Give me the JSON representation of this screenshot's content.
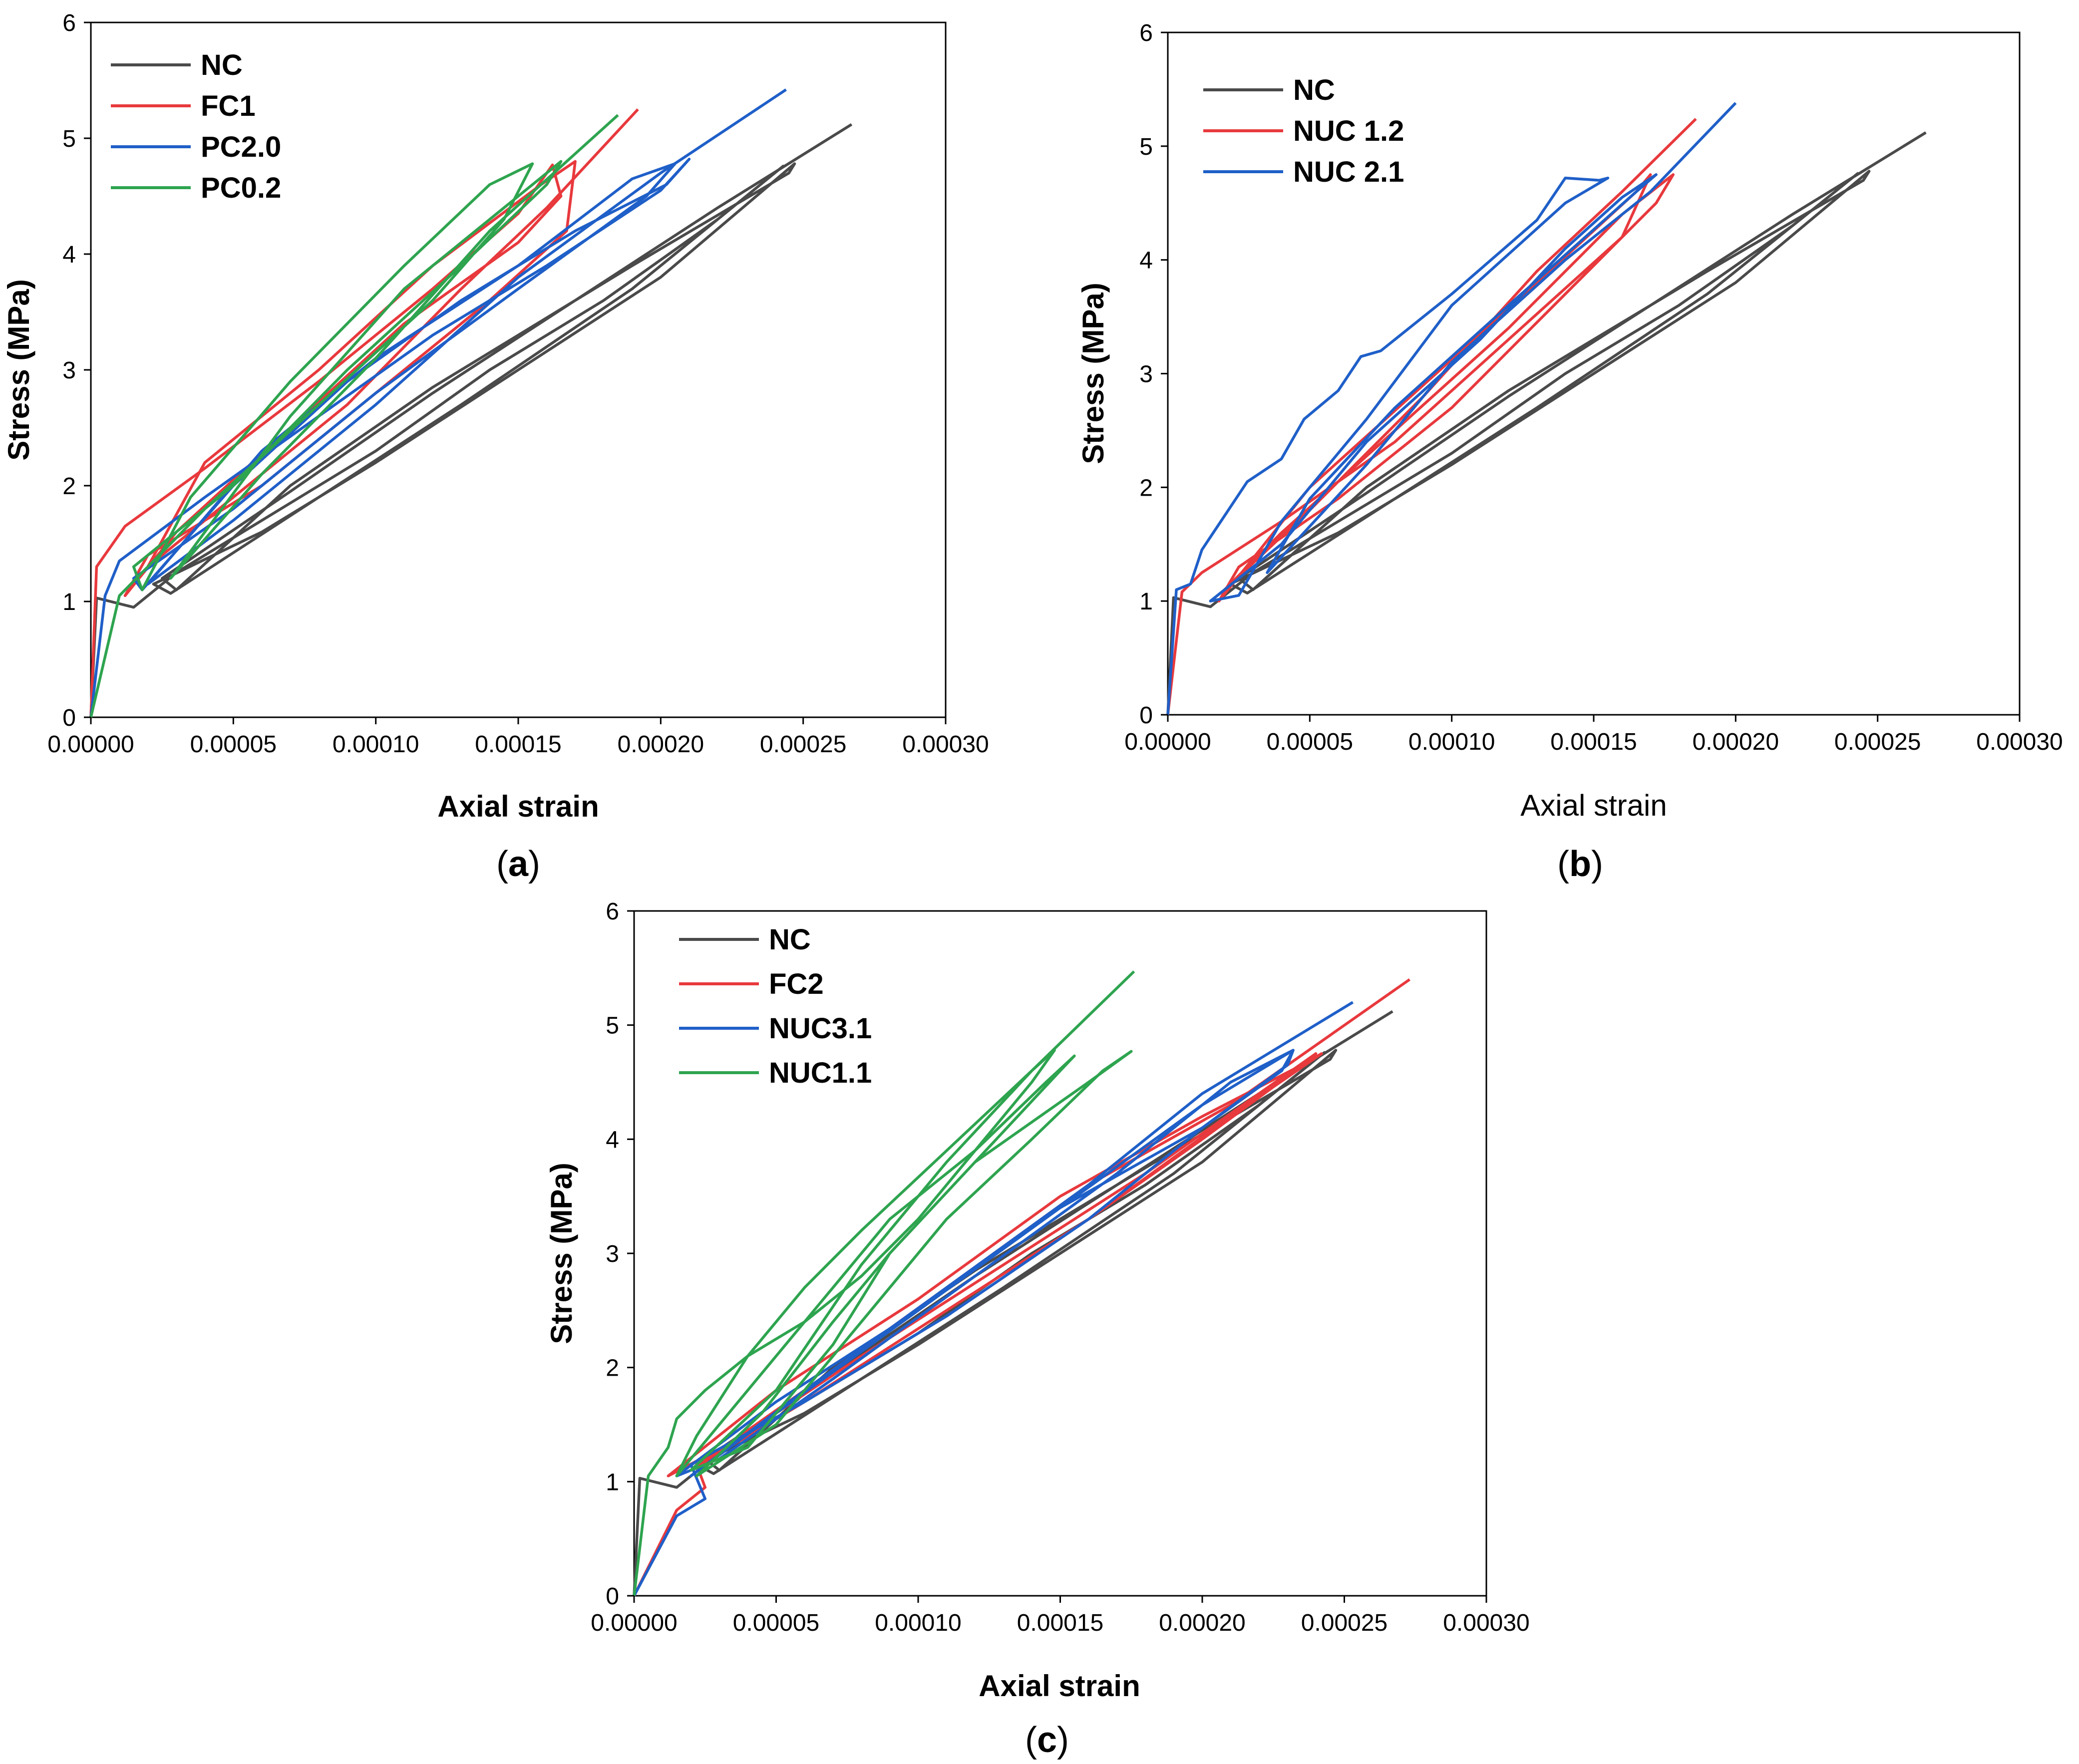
{
  "colors": {
    "NC": "#4a4a4a",
    "red": "#e8393d",
    "blue": "#1f5fc8",
    "green": "#2ea44f"
  },
  "chart_data": [
    {
      "id": "a",
      "type": "line",
      "caption_letter": "a",
      "xlabel": "Axial strain",
      "ylabel": "Stress (MPa)",
      "xlim": [
        0,
        0.0003
      ],
      "ylim": [
        0,
        6
      ],
      "xticks": [
        "0.00000",
        "0.00005",
        "0.00010",
        "0.00015",
        "0.00020",
        "0.00025",
        "0.00030"
      ],
      "yticks": [
        "0",
        "1",
        "2",
        "3",
        "4",
        "5",
        "6"
      ],
      "series": [
        {
          "name": "NC",
          "color": "#4a4a4a",
          "x": [
            0,
            2e-06,
            1.5e-05,
            3e-05,
            6e-05,
            0.0001,
            0.00014,
            0.00018,
            0.00022,
            0.000243,
            0.000235,
            0.00019,
            0.00013,
            8e-05,
            2.8e-05,
            2.2e-05,
            6e-05,
            0.0001,
            0.00015,
            0.0002,
            0.000247,
            0.000245,
            0.00019,
            0.00012,
            7e-05,
            3e-05,
            2.5e-05,
            7e-05,
            0.00012,
            0.00017,
            0.00022,
            0.000267
          ],
          "y": [
            0,
            1.03,
            0.95,
            1.25,
            1.7,
            2.3,
            3.0,
            3.6,
            4.3,
            4.76,
            4.6,
            3.7,
            2.7,
            1.9,
            1.07,
            1.15,
            1.6,
            2.2,
            3.0,
            3.8,
            4.78,
            4.7,
            3.9,
            2.85,
            2.0,
            1.1,
            1.2,
            1.95,
            2.8,
            3.6,
            4.4,
            5.12
          ]
        },
        {
          "name": "FC1",
          "color": "#e8393d",
          "x": [
            0,
            2e-06,
            1.2e-05,
            4e-05,
            8e-05,
            0.00012,
            0.00015,
            0.000162,
            0.000165,
            0.00015,
            0.00011,
            7e-05,
            3e-05,
            1.2e-05,
            2e-05,
            6e-05,
            0.0001,
            0.00014,
            0.000167,
            0.00017,
            0.000158,
            0.00012,
            8e-05,
            4e-05,
            2e-05,
            5e-05,
            9e-05,
            0.00013,
            0.00016,
            0.000192
          ],
          "y": [
            0,
            1.3,
            1.65,
            2.15,
            2.9,
            3.7,
            4.35,
            4.77,
            4.5,
            4.1,
            3.4,
            2.5,
            1.6,
            1.05,
            1.4,
            2.0,
            2.8,
            3.6,
            4.2,
            4.8,
            4.6,
            3.9,
            3.0,
            2.2,
            1.3,
            1.9,
            2.7,
            3.7,
            4.4,
            5.25
          ]
        },
        {
          "name": "PC2.0",
          "color": "#1f5fc8",
          "x": [
            0,
            5e-06,
            1e-05,
            4e-05,
            8e-05,
            0.00012,
            0.00016,
            0.0002,
            0.00021,
            0.000202,
            0.00017,
            0.00013,
            9e-05,
            5e-05,
            1.8e-05,
            1.5e-05,
            5e-05,
            0.0001,
            0.00015,
            0.000195,
            0.000205,
            0.00019,
            0.00015,
            0.0001,
            6e-05,
            2e-05,
            5e-05,
            0.0001,
            0.00015,
            0.0002,
            0.000244
          ],
          "y": [
            0,
            1.05,
            1.35,
            1.9,
            2.6,
            3.3,
            3.9,
            4.55,
            4.82,
            4.6,
            4.2,
            3.6,
            2.9,
            2.0,
            1.1,
            1.2,
            1.8,
            2.8,
            3.7,
            4.5,
            4.78,
            4.65,
            3.9,
            3.1,
            2.3,
            1.15,
            1.7,
            2.7,
            3.8,
            4.7,
            5.42
          ]
        },
        {
          "name": "PC0.2",
          "color": "#2ea44f",
          "x": [
            0,
            1e-05,
            4e-05,
            8e-05,
            0.00012,
            0.000145,
            0.000155,
            0.00014,
            0.00011,
            7e-05,
            3.5e-05,
            1.8e-05,
            1.5e-05,
            5e-05,
            9e-05,
            0.00013,
            0.00016,
            0.000165,
            0.00015,
            0.00011,
            7e-05,
            2.8e-05,
            6e-05,
            0.0001,
            0.00014,
            0.000185
          ],
          "y": [
            0,
            1.05,
            1.8,
            2.7,
            3.6,
            4.3,
            4.78,
            4.6,
            3.9,
            2.9,
            1.9,
            1.1,
            1.3,
            2.0,
            3.0,
            3.9,
            4.6,
            4.8,
            4.5,
            3.7,
            2.6,
            1.2,
            2.1,
            3.1,
            4.2,
            5.2
          ]
        }
      ]
    },
    {
      "id": "b",
      "type": "line",
      "caption_letter": "b",
      "xlabel": "Axial strain",
      "ylabel": "Stress (MPa)",
      "xlim": [
        0,
        0.0003
      ],
      "ylim": [
        0,
        6
      ],
      "xticks": [
        "0.00000",
        "0.00005",
        "0.00010",
        "0.00015",
        "0.00020",
        "0.00025",
        "0.00030"
      ],
      "yticks": [
        "0",
        "1",
        "2",
        "3",
        "4",
        "5",
        "6"
      ],
      "series": [
        {
          "name": "NC",
          "color": "#4a4a4a",
          "x": [
            0,
            2e-06,
            1.5e-05,
            3e-05,
            6e-05,
            0.0001,
            0.00014,
            0.00018,
            0.00022,
            0.000243,
            0.000235,
            0.00019,
            0.00013,
            8e-05,
            2.8e-05,
            2.2e-05,
            6e-05,
            0.0001,
            0.00015,
            0.0002,
            0.000247,
            0.000245,
            0.00019,
            0.00012,
            7e-05,
            3e-05,
            2.5e-05,
            7e-05,
            0.00012,
            0.00017,
            0.00022,
            0.000267
          ],
          "y": [
            0,
            1.03,
            0.95,
            1.25,
            1.7,
            2.3,
            3.0,
            3.6,
            4.3,
            4.76,
            4.6,
            3.7,
            2.7,
            1.9,
            1.07,
            1.15,
            1.6,
            2.2,
            3.0,
            3.8,
            4.78,
            4.7,
            3.9,
            2.85,
            2.0,
            1.1,
            1.2,
            1.95,
            2.8,
            3.6,
            4.4,
            5.12
          ]
        },
        {
          "name": "NUC 1.2",
          "color": "#e8393d",
          "x": [
            0,
            5e-06,
            1.2e-05,
            4e-05,
            8e-05,
            0.00012,
            0.00016,
            0.00017,
            0.000165,
            0.00013,
            9e-05,
            5e-05,
            1.8e-05,
            2.5e-05,
            6e-05,
            0.0001,
            0.00014,
            0.000172,
            0.000178,
            0.00016,
            0.00012,
            8e-05,
            4e-05,
            2e-05,
            5e-05,
            9e-05,
            0.00013,
            0.00016,
            0.000186
          ],
          "y": [
            0,
            1.08,
            1.25,
            1.7,
            2.4,
            3.3,
            4.2,
            4.75,
            4.6,
            3.8,
            2.9,
            2.0,
            1.0,
            1.3,
            1.9,
            2.7,
            3.7,
            4.5,
            4.75,
            4.4,
            3.4,
            2.5,
            1.6,
            1.1,
            1.8,
            2.8,
            3.9,
            4.6,
            5.24
          ]
        },
        {
          "name": "NUC 2.1",
          "color": "#1f5fc8",
          "x": [
            0,
            3e-06,
            8e-06,
            1.2e-05,
            2e-05,
            2.8e-05,
            4e-05,
            4.8e-05,
            6e-05,
            6.8e-05,
            7.5e-05,
            0.0001,
            0.00013,
            0.00014,
            0.000152,
            0.000155,
            0.00014,
            0.0001,
            7e-05,
            4e-05,
            2.5e-05,
            1.5e-05,
            4e-05,
            7e-05,
            0.00011,
            0.00014,
            0.00016,
            0.000172,
            0.000165,
            0.00012,
            8e-05,
            5e-05,
            3.5e-05,
            7e-05,
            0.0001,
            0.00014,
            0.00017,
            0.0002
          ],
          "y": [
            0,
            1.1,
            1.15,
            1.45,
            1.75,
            2.05,
            2.25,
            2.6,
            2.85,
            3.15,
            3.2,
            3.7,
            4.35,
            4.72,
            4.7,
            4.72,
            4.5,
            3.6,
            2.6,
            1.7,
            1.05,
            1.0,
            1.5,
            2.4,
            3.3,
            4.1,
            4.55,
            4.75,
            4.6,
            3.6,
            2.7,
            1.9,
            1.25,
            2.2,
            3.1,
            4.0,
            4.6,
            5.38
          ]
        }
      ]
    },
    {
      "id": "c",
      "type": "line",
      "caption_letter": "c",
      "xlabel": "Axial strain",
      "ylabel": "Stress (MPa)",
      "xlim": [
        0,
        0.0003
      ],
      "ylim": [
        0,
        6
      ],
      "xticks": [
        "0.00000",
        "0.00005",
        "0.00010",
        "0.00015",
        "0.00020",
        "0.00025",
        "0.00030"
      ],
      "yticks": [
        "0",
        "1",
        "2",
        "3",
        "4",
        "5",
        "6"
      ],
      "series": [
        {
          "name": "NC",
          "color": "#4a4a4a",
          "x": [
            0,
            2e-06,
            1.5e-05,
            3e-05,
            6e-05,
            0.0001,
            0.00014,
            0.00018,
            0.00022,
            0.000243,
            0.000235,
            0.00019,
            0.00013,
            8e-05,
            2.8e-05,
            2.2e-05,
            6e-05,
            0.0001,
            0.00015,
            0.0002,
            0.000247,
            0.000245,
            0.00019,
            0.00012,
            7e-05,
            3e-05,
            2.5e-05,
            7e-05,
            0.00012,
            0.00017,
            0.00022,
            0.000267
          ],
          "y": [
            0,
            1.03,
            0.95,
            1.25,
            1.7,
            2.3,
            3.0,
            3.6,
            4.3,
            4.76,
            4.6,
            3.7,
            2.7,
            1.9,
            1.07,
            1.15,
            1.6,
            2.2,
            3.0,
            3.8,
            4.78,
            4.7,
            3.9,
            2.85,
            2.0,
            1.1,
            1.2,
            1.95,
            2.8,
            3.6,
            4.4,
            5.12
          ]
        },
        {
          "name": "FC2",
          "color": "#e8393d",
          "x": [
            0,
            1.5e-05,
            2.5e-05,
            2.2e-05,
            6e-05,
            0.00011,
            0.00016,
            0.0002,
            0.00023,
            0.00024,
            0.00022,
            0.00018,
            0.00013,
            8e-05,
            3.5e-05,
            1.2e-05,
            5e-05,
            0.0001,
            0.00015,
            0.0002,
            0.000235,
            0.000242,
            0.00021,
            0.00016,
            0.00011,
            6e-05,
            2e-05,
            6e-05,
            0.00011,
            0.00016,
            0.00021,
            0.000273
          ],
          "y": [
            0,
            0.75,
            0.95,
            1.15,
            1.7,
            2.5,
            3.3,
            4.0,
            4.55,
            4.75,
            4.4,
            3.7,
            2.9,
            2.1,
            1.35,
            1.05,
            1.8,
            2.6,
            3.5,
            4.2,
            4.65,
            4.75,
            4.2,
            3.3,
            2.5,
            1.7,
            1.1,
            1.8,
            2.7,
            3.6,
            4.3,
            5.4
          ]
        },
        {
          "name": "NUC3.1",
          "color": "#1f5fc8",
          "x": [
            0,
            1.5e-05,
            2.5e-05,
            2e-05,
            6e-05,
            0.00011,
            0.00016,
            0.0002,
            0.00023,
            0.000232,
            0.00021,
            0.00017,
            0.00012,
            7e-05,
            3e-05,
            1.5e-05,
            5e-05,
            0.0001,
            0.00015,
            0.0002,
            0.000228,
            0.000232,
            0.0002,
            0.00015,
            0.0001,
            5e-05,
            2e-05,
            6e-05,
            0.00011,
            0.00016,
            0.0002,
            0.000253
          ],
          "y": [
            0,
            0.7,
            0.85,
            1.15,
            1.7,
            2.45,
            3.3,
            4.1,
            4.65,
            4.78,
            4.5,
            3.7,
            2.8,
            1.9,
            1.2,
            1.05,
            1.7,
            2.5,
            3.4,
            4.1,
            4.6,
            4.78,
            4.3,
            3.4,
            2.5,
            1.6,
            1.05,
            1.8,
            2.7,
            3.6,
            4.4,
            5.2
          ]
        },
        {
          "name": "NUC1.1",
          "color": "#2ea44f",
          "x": [
            0,
            5e-06,
            1.2e-05,
            1.5e-05,
            2.5e-05,
            4e-05,
            6e-05,
            8e-05,
            0.0001,
            0.00012,
            0.00014,
            0.000148,
            0.00014,
            0.00011,
            8e-05,
            6e-05,
            4e-05,
            2.2e-05,
            1.5e-05,
            3e-05,
            5e-05,
            7e-05,
            9e-05,
            0.00012,
            0.000145,
            0.000155,
            0.00015,
            0.00012,
            9e-05,
            7e-05,
            4.5e-05,
            2.2e-05,
            5e-05,
            8e-05,
            0.00011,
            0.00014,
            0.000165,
            0.000175,
            0.00016,
            0.00012,
            9e-05,
            7e-05,
            4e-05,
            2e-05,
            5e-05,
            8e-05,
            0.00011,
            0.00014,
            0.000176
          ],
          "y": [
            0,
            1.05,
            1.3,
            1.55,
            1.8,
            2.1,
            2.4,
            2.8,
            3.3,
            3.9,
            4.5,
            4.78,
            4.6,
            3.9,
            3.2,
            2.7,
            2.1,
            1.4,
            1.05,
            1.5,
            2.1,
            2.7,
            3.3,
            3.9,
            4.5,
            4.73,
            4.6,
            3.8,
            3.0,
            2.4,
            1.6,
            1.05,
            1.5,
            2.4,
            3.3,
            4.0,
            4.6,
            4.77,
            4.5,
            3.8,
            3.0,
            2.2,
            1.3,
            1.1,
            1.8,
            2.9,
            3.8,
            4.6,
            5.47
          ]
        }
      ]
    }
  ]
}
